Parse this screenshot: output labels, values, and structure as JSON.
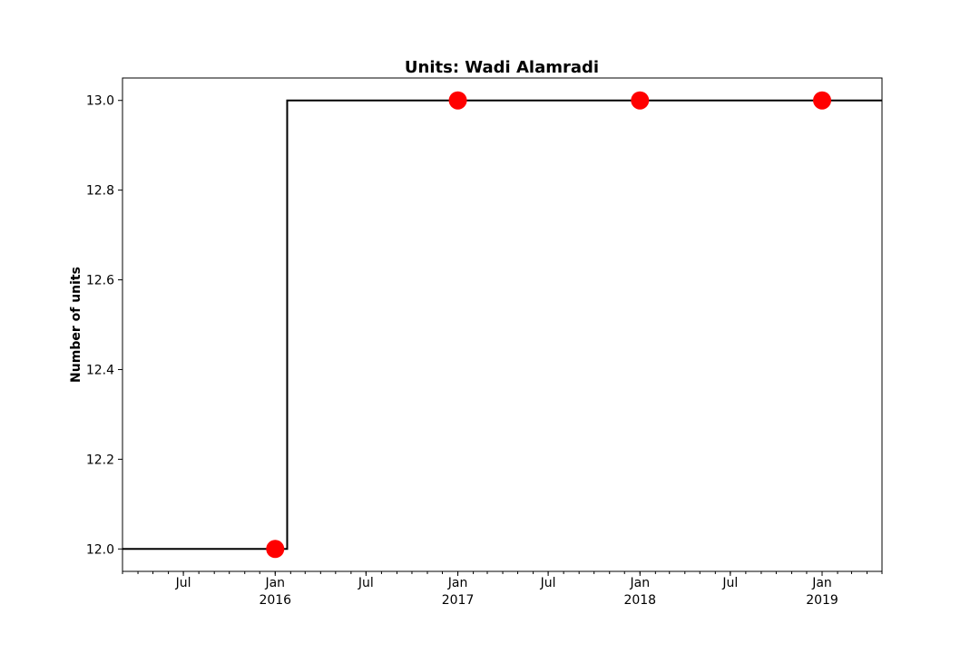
{
  "chart_data": {
    "type": "line",
    "title": "Units: Wadi Alamradi",
    "xlabel": "",
    "ylabel": "Number of units",
    "xlim": [
      "2015-03-01",
      "2019-05-01"
    ],
    "ylim": [
      11.95,
      13.05
    ],
    "y_ticks": [
      12.0,
      12.2,
      12.4,
      12.6,
      12.8,
      13.0
    ],
    "y_tick_labels": [
      "12.0",
      "12.2",
      "12.4",
      "12.6",
      "12.8",
      "13.0"
    ],
    "x_major_ticks": [
      {
        "date": "2015-07-01",
        "label": "Jul",
        "sublabel": ""
      },
      {
        "date": "2016-01-01",
        "label": "Jan",
        "sublabel": "2016"
      },
      {
        "date": "2016-07-01",
        "label": "Jul",
        "sublabel": ""
      },
      {
        "date": "2017-01-01",
        "label": "Jan",
        "sublabel": "2017"
      },
      {
        "date": "2017-07-01",
        "label": "Jul",
        "sublabel": ""
      },
      {
        "date": "2018-01-01",
        "label": "Jan",
        "sublabel": "2018"
      },
      {
        "date": "2018-07-01",
        "label": "Jul",
        "sublabel": ""
      },
      {
        "date": "2019-01-01",
        "label": "Jan",
        "sublabel": "2019"
      }
    ],
    "grid": false,
    "series": [
      {
        "style": "step",
        "color": "#000000",
        "points": [
          {
            "x": "2015-03-01",
            "y": 12.0
          },
          {
            "x": "2016-01-25",
            "y": 12.0
          },
          {
            "x": "2016-01-25",
            "y": 13.0
          },
          {
            "x": "2019-05-01",
            "y": 13.0
          }
        ]
      },
      {
        "style": "markers",
        "color": "#ff0000",
        "points": [
          {
            "x": "2016-01-01",
            "y": 12.0
          },
          {
            "x": "2017-01-01",
            "y": 13.0
          },
          {
            "x": "2018-01-01",
            "y": 13.0
          },
          {
            "x": "2019-01-01",
            "y": 13.0
          }
        ]
      }
    ]
  }
}
